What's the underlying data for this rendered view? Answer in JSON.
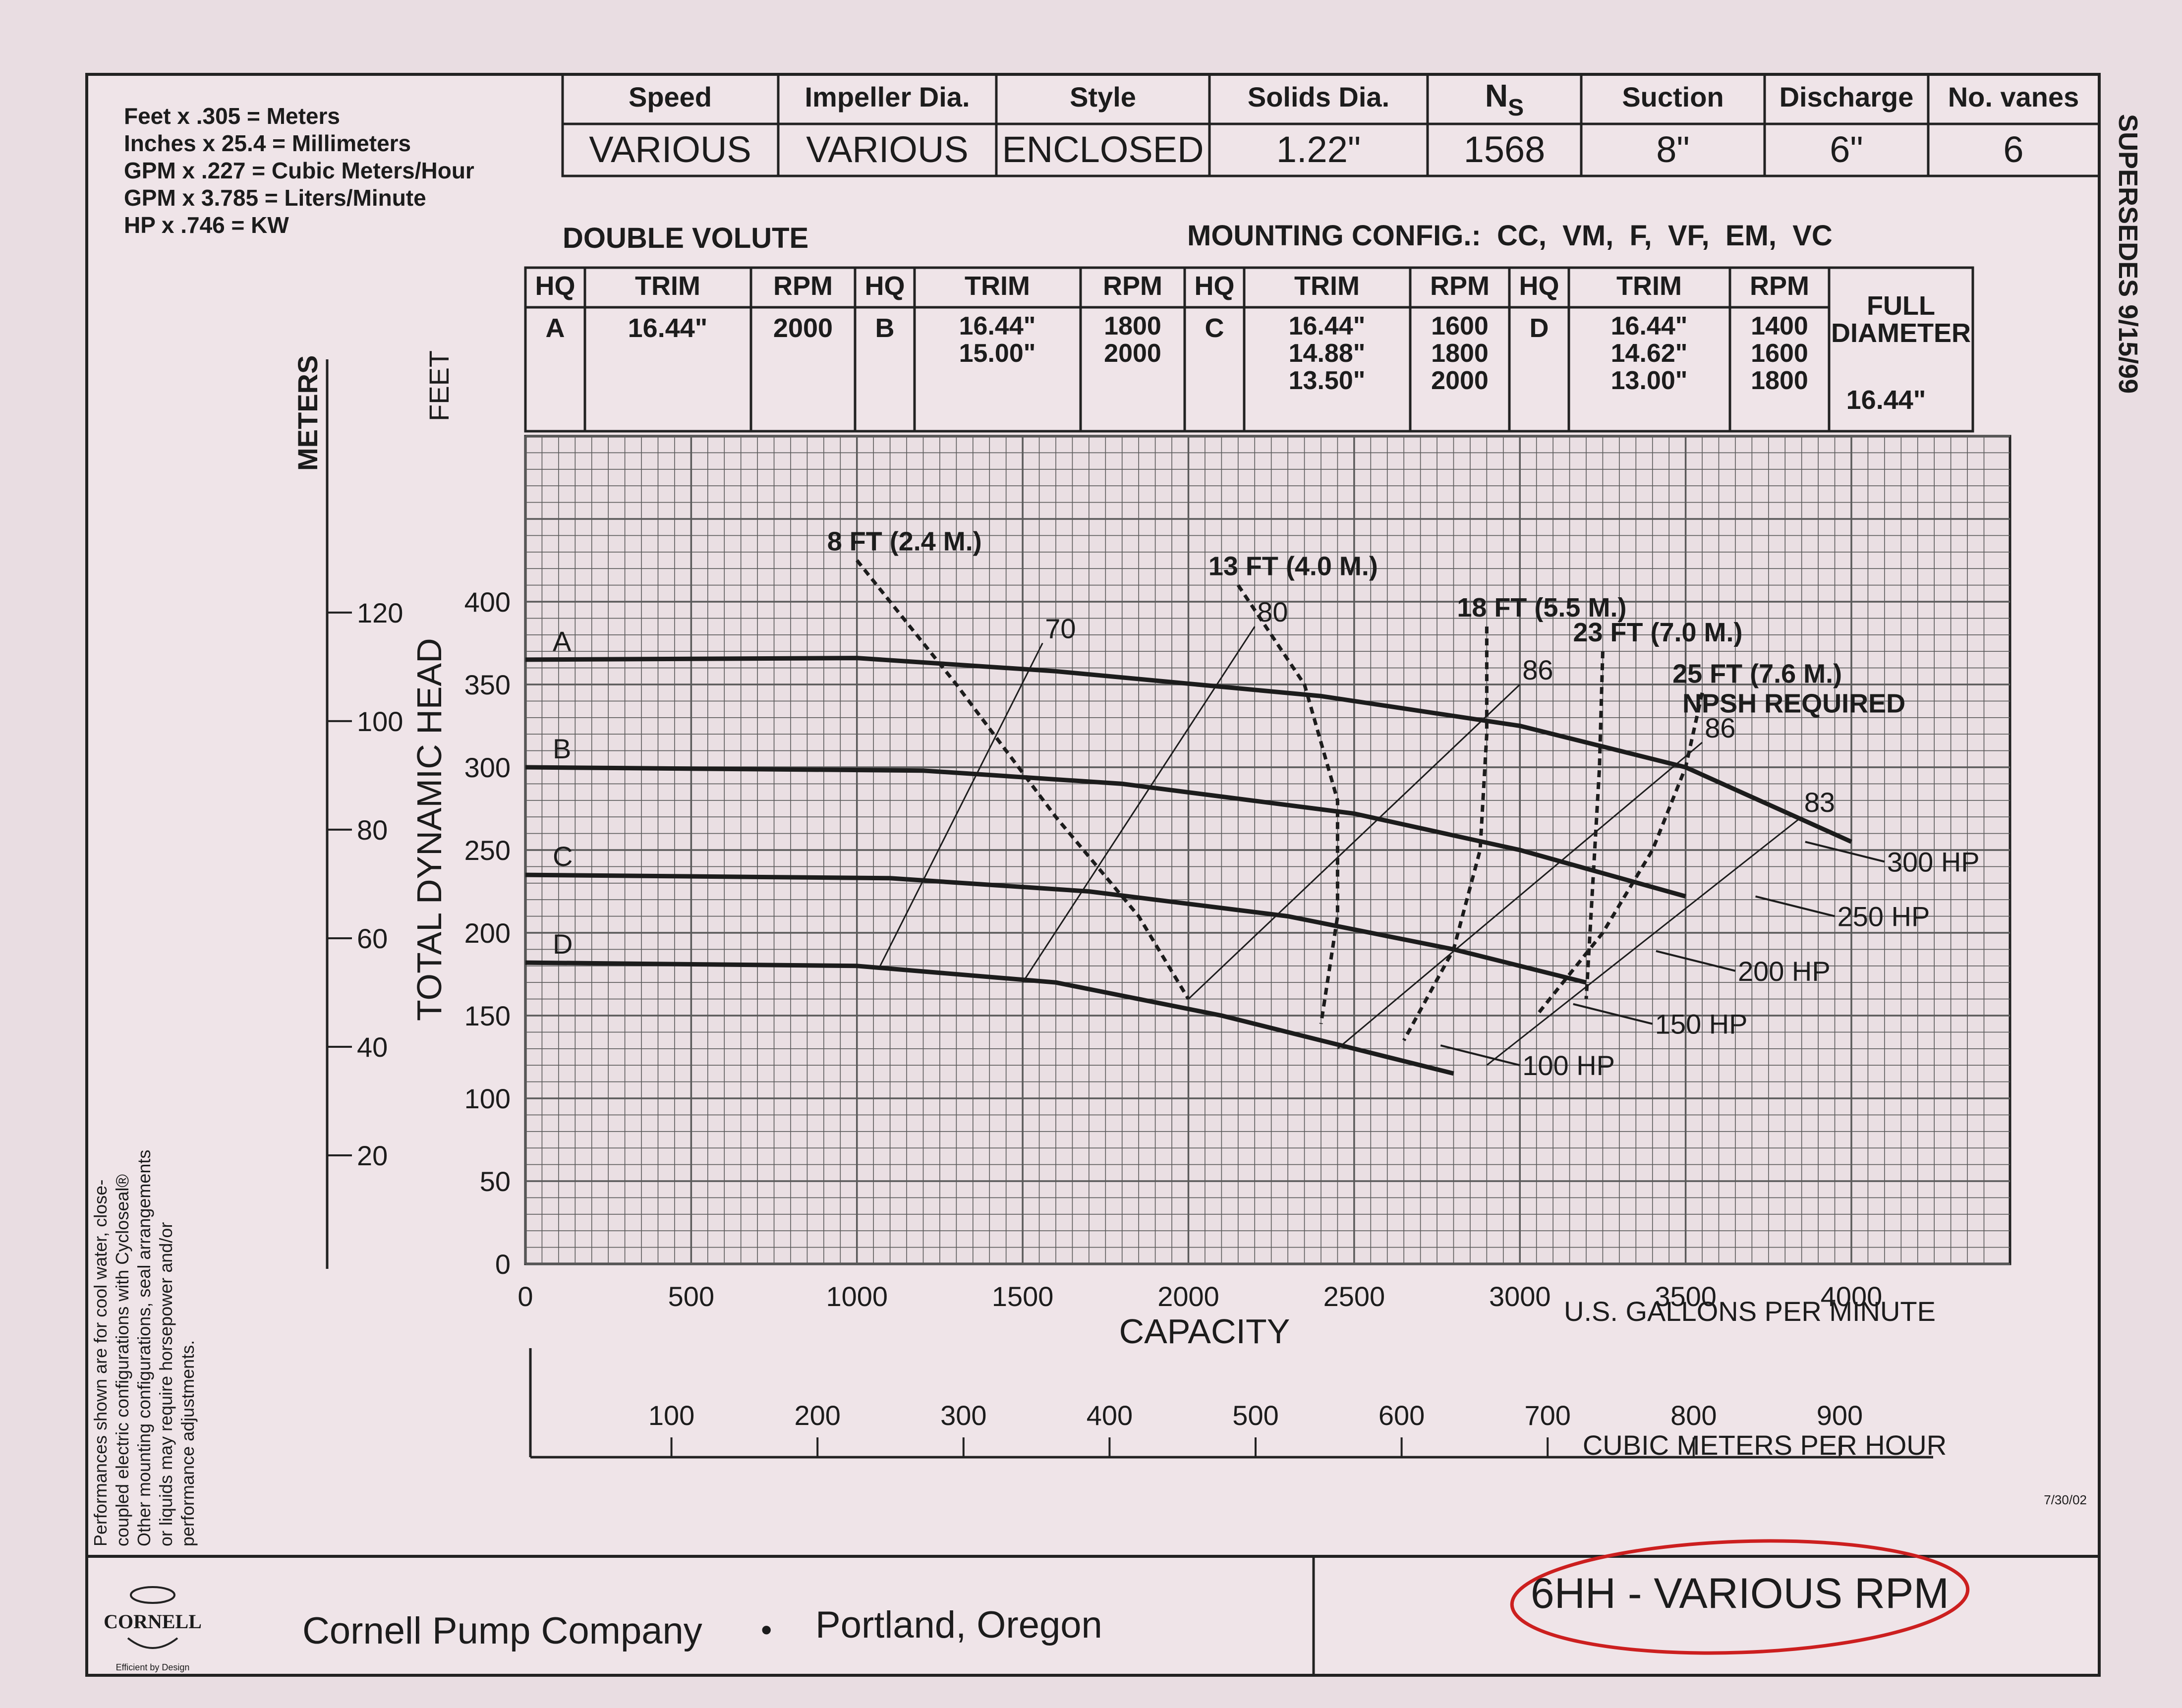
{
  "conversions": [
    "Feet x .305 = Meters",
    "Inches x 25.4 = Millimeters",
    "GPM x .227 = Cubic Meters/Hour",
    "GPM x 3.785 = Liters/Minute",
    "HP x .746 = KW"
  ],
  "spec_table": {
    "headers": [
      "Speed",
      "Impeller Dia.",
      "Style",
      "Solids Dia.",
      "N",
      "Suction",
      "Discharge",
      "No. vanes"
    ],
    "ns_subscript": "S",
    "values": [
      "VARIOUS",
      "VARIOUS",
      "ENCLOSED",
      "1.22\"",
      "1568",
      "8\"",
      "6\"",
      "6"
    ]
  },
  "supersedes": "SUPERSEDES 9/15/99",
  "double_volute": "DOUBLE VOLUTE",
  "mounting_config": "MOUNTING CONFIG.:  CC,  VM,  F,  VF,  EM,  VC",
  "trim_table": {
    "header_hq": "HQ",
    "header_trim": "TRIM",
    "header_rpm": "RPM",
    "groups": [
      {
        "hq": "A",
        "trims": [
          "16.44\""
        ],
        "rpms": [
          "2000"
        ]
      },
      {
        "hq": "B",
        "trims": [
          "16.44\"",
          "15.00\""
        ],
        "rpms": [
          "1800",
          "2000"
        ]
      },
      {
        "hq": "C",
        "trims": [
          "16.44\"",
          "14.88\"",
          "13.50\""
        ],
        "rpms": [
          "1600",
          "1800",
          "2000"
        ]
      },
      {
        "hq": "D",
        "trims": [
          "16.44\"",
          "14.62\"",
          "13.00\""
        ],
        "rpms": [
          "1400",
          "1600",
          "1800"
        ]
      }
    ],
    "full_diameter_label": [
      "FULL",
      "DIAMETER"
    ],
    "full_diameter_value": "16.44\""
  },
  "left_note": [
    "Performances shown are for cool water, close-",
    "coupled electric configurations with Cycloseal®",
    "Other mounting configurations, seal arrangements",
    "or liquids may require horsepower and/or",
    "performance adjustments."
  ],
  "date_code": "7/30/02",
  "footer": {
    "logo_text": "CORNELL",
    "logo_tagline": "Efficient by Design",
    "company": "Cornell Pump Company",
    "bullet": "•",
    "city": "Portland, Oregon",
    "model": "6HH - VARIOUS RPM"
  },
  "colors": {
    "paper": "#e9dde2",
    "ink": "#1c1c1c",
    "grid": "#5a5a5a",
    "highlight": "#cc1f1f"
  },
  "chart_data": {
    "type": "line",
    "ylabel": "TOTAL DYNAMIC HEAD",
    "y_units_label": "FEET",
    "y2_units_label": "METERS",
    "xlabel": "CAPACITY",
    "x_units_label": "U.S. GALLONS PER MINUTE",
    "x2_units_label": "CUBIC METERS PER HOUR",
    "xlim": [
      0,
      4400
    ],
    "ylim": [
      0,
      500
    ],
    "grid": true,
    "x_ticks": [
      0,
      500,
      1000,
      1500,
      2000,
      2500,
      3000,
      3500,
      4000
    ],
    "y_ticks": [
      0,
      50,
      100,
      150,
      200,
      250,
      300,
      350,
      400
    ],
    "meter_ticks": [
      20,
      40,
      60,
      80,
      100,
      120
    ],
    "m3h_ticks": [
      100,
      200,
      300,
      400,
      500,
      600,
      700,
      800,
      900
    ],
    "series": [
      {
        "name": "A",
        "x": [
          0,
          1000,
          1600,
          2400,
          3000,
          3500,
          4000
        ],
        "y": [
          365,
          366,
          358,
          343,
          325,
          300,
          255
        ]
      },
      {
        "name": "B",
        "x": [
          0,
          1200,
          1800,
          2500,
          3000,
          3500
        ],
        "y": [
          300,
          298,
          290,
          272,
          250,
          222
        ]
      },
      {
        "name": "C",
        "x": [
          0,
          1100,
          1700,
          2300,
          2800,
          3200
        ],
        "y": [
          235,
          233,
          225,
          210,
          190,
          170
        ]
      },
      {
        "name": "D",
        "x": [
          0,
          1000,
          1600,
          2100,
          2500,
          2800
        ],
        "y": [
          182,
          180,
          170,
          150,
          130,
          115
        ]
      }
    ],
    "efficiency_lines": [
      {
        "label": "70",
        "x": [
          1070,
          1560
        ],
        "y": [
          180,
          375
        ]
      },
      {
        "label": "80",
        "x": [
          1500,
          2200
        ],
        "y": [
          170,
          385
        ]
      },
      {
        "label": "86",
        "x": [
          2000,
          3000
        ],
        "y": [
          160,
          350
        ]
      },
      {
        "label": "86",
        "x": [
          2450,
          3550
        ],
        "y": [
          130,
          315
        ]
      },
      {
        "label": "83",
        "x": [
          2900,
          3850
        ],
        "y": [
          120,
          270
        ]
      }
    ],
    "npsh_curves": [
      {
        "label": "8 FT (2.4 M.)",
        "x": [
          1000,
          1300,
          1600,
          1850,
          2000
        ],
        "y": [
          425,
          350,
          270,
          210,
          160
        ]
      },
      {
        "label": "13 FT (4.0 M.)",
        "x": [
          2150,
          2350,
          2450,
          2450,
          2400
        ],
        "y": [
          410,
          350,
          280,
          210,
          145
        ]
      },
      {
        "label": "18 FT (5.5 M.)",
        "x": [
          2900,
          2900,
          2880,
          2800,
          2650
        ],
        "y": [
          385,
          320,
          250,
          190,
          135
        ]
      },
      {
        "label": "23 FT (7.0 M.)",
        "x": [
          3250,
          3240,
          3220,
          3200
        ],
        "y": [
          370,
          300,
          230,
          160
        ]
      },
      {
        "label": "25 FT (7.6 M.)",
        "x": [
          3550,
          3500,
          3400,
          3250,
          3050
        ],
        "y": [
          345,
          300,
          250,
          200,
          150
        ]
      }
    ],
    "npsh_required_label": "NPSH REQUIRED",
    "hp_lines": [
      {
        "label": "100 HP",
        "x": [
          3000
        ],
        "y": [
          120
        ]
      },
      {
        "label": "150 HP",
        "x": [
          3400
        ],
        "y": [
          145
        ]
      },
      {
        "label": "200 HP",
        "x": [
          3650
        ],
        "y": [
          177
        ]
      },
      {
        "label": "250 HP",
        "x": [
          3950
        ],
        "y": [
          210
        ]
      },
      {
        "label": "300 HP",
        "x": [
          4100
        ],
        "y": [
          243
        ]
      }
    ]
  }
}
